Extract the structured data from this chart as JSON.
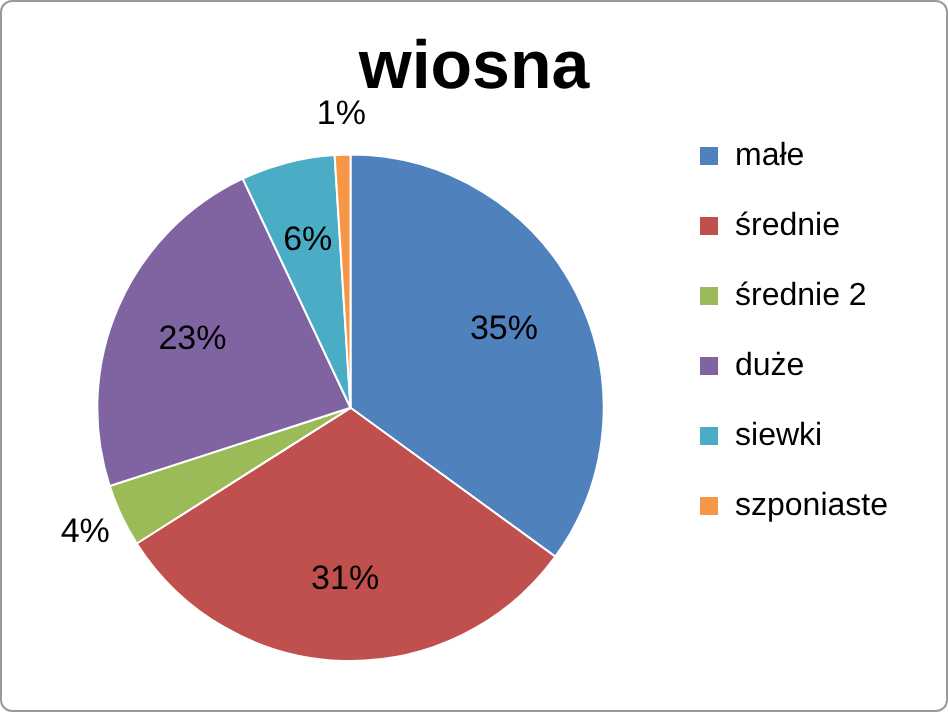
{
  "chart_data": {
    "type": "pie",
    "title": "wiosna",
    "categories": [
      "małe",
      "średnie",
      "średnie 2",
      "duże",
      "siewki",
      "szponiaste"
    ],
    "values": [
      35,
      31,
      4,
      23,
      6,
      1
    ],
    "colors": [
      "#4f81bd",
      "#c0504d",
      "#9bbb59",
      "#8064a2",
      "#4bacc6",
      "#f79646"
    ],
    "value_labels": [
      "35%",
      "31%",
      "4%",
      "23%",
      "6%",
      "1%"
    ],
    "legend": "right"
  }
}
